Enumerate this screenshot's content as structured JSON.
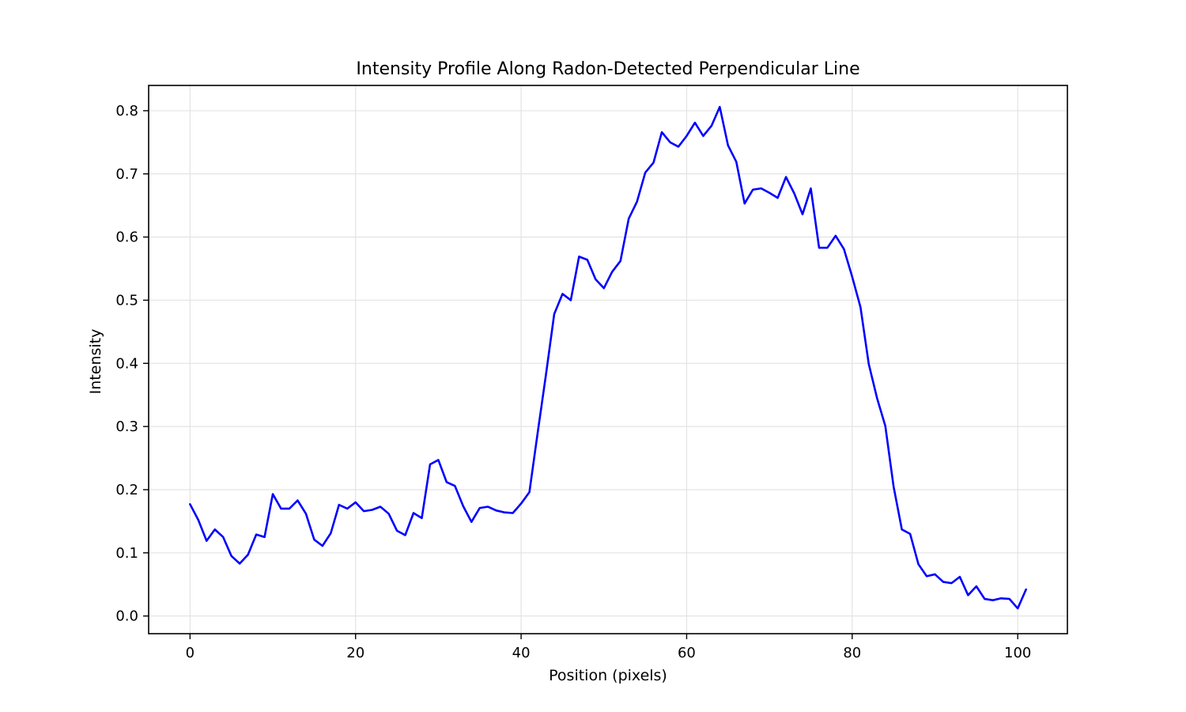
{
  "chart_data": {
    "type": "line",
    "title": "Intensity Profile Along Radon-Detected Perpendicular Line",
    "xlabel": "Position (pixels)",
    "ylabel": "Intensity",
    "xlim": [
      -5,
      106
    ],
    "ylim": [
      -0.028,
      0.84
    ],
    "grid": true,
    "legend": "none",
    "x_ticks": [
      0,
      20,
      40,
      60,
      80,
      100
    ],
    "x_tick_labels": [
      "0",
      "20",
      "40",
      "60",
      "80",
      "100"
    ],
    "y_ticks": [
      0.0,
      0.1,
      0.2,
      0.3,
      0.4,
      0.5,
      0.6,
      0.7,
      0.8
    ],
    "y_tick_labels": [
      "0.0",
      "0.1",
      "0.2",
      "0.3",
      "0.4",
      "0.5",
      "0.6",
      "0.7",
      "0.8"
    ],
    "series": [
      {
        "color": "#0000ff",
        "x": [
          0,
          1,
          2,
          3,
          4,
          5,
          6,
          7,
          8,
          9,
          10,
          11,
          12,
          13,
          14,
          15,
          16,
          17,
          18,
          19,
          20,
          21,
          22,
          23,
          24,
          25,
          26,
          27,
          28,
          29,
          30,
          31,
          32,
          33,
          34,
          35,
          36,
          37,
          38,
          39,
          40,
          41,
          42,
          43,
          44,
          45,
          46,
          47,
          48,
          49,
          50,
          51,
          52,
          53,
          54,
          55,
          56,
          57,
          58,
          59,
          60,
          61,
          62,
          63,
          64,
          65,
          66,
          67,
          68,
          69,
          70,
          71,
          72,
          73,
          74,
          75,
          76,
          77,
          78,
          79,
          80,
          81,
          82,
          83,
          84,
          85,
          86,
          87,
          88,
          89,
          90,
          91,
          92,
          93,
          94,
          95,
          96,
          97,
          98,
          99,
          100,
          101
        ],
        "values": [
          0.177,
          0.152,
          0.119,
          0.137,
          0.125,
          0.095,
          0.083,
          0.097,
          0.129,
          0.125,
          0.193,
          0.17,
          0.17,
          0.183,
          0.162,
          0.121,
          0.111,
          0.131,
          0.176,
          0.17,
          0.18,
          0.166,
          0.168,
          0.173,
          0.162,
          0.135,
          0.128,
          0.163,
          0.155,
          0.24,
          0.247,
          0.212,
          0.206,
          0.174,
          0.149,
          0.171,
          0.173,
          0.167,
          0.164,
          0.163,
          0.178,
          0.196,
          0.29,
          0.382,
          0.478,
          0.51,
          0.5,
          0.569,
          0.564,
          0.533,
          0.519,
          0.545,
          0.562,
          0.629,
          0.656,
          0.702,
          0.718,
          0.766,
          0.75,
          0.743,
          0.76,
          0.781,
          0.76,
          0.776,
          0.806,
          0.745,
          0.719,
          0.653,
          0.675,
          0.677,
          0.67,
          0.662,
          0.695,
          0.669,
          0.636,
          0.677,
          0.583,
          0.583,
          0.602,
          0.581,
          0.537,
          0.489,
          0.399,
          0.345,
          0.301,
          0.205,
          0.137,
          0.13,
          0.082,
          0.063,
          0.066,
          0.054,
          0.052,
          0.062,
          0.033,
          0.047,
          0.027,
          0.025,
          0.028,
          0.027,
          0.012,
          0.042
        ]
      }
    ]
  }
}
